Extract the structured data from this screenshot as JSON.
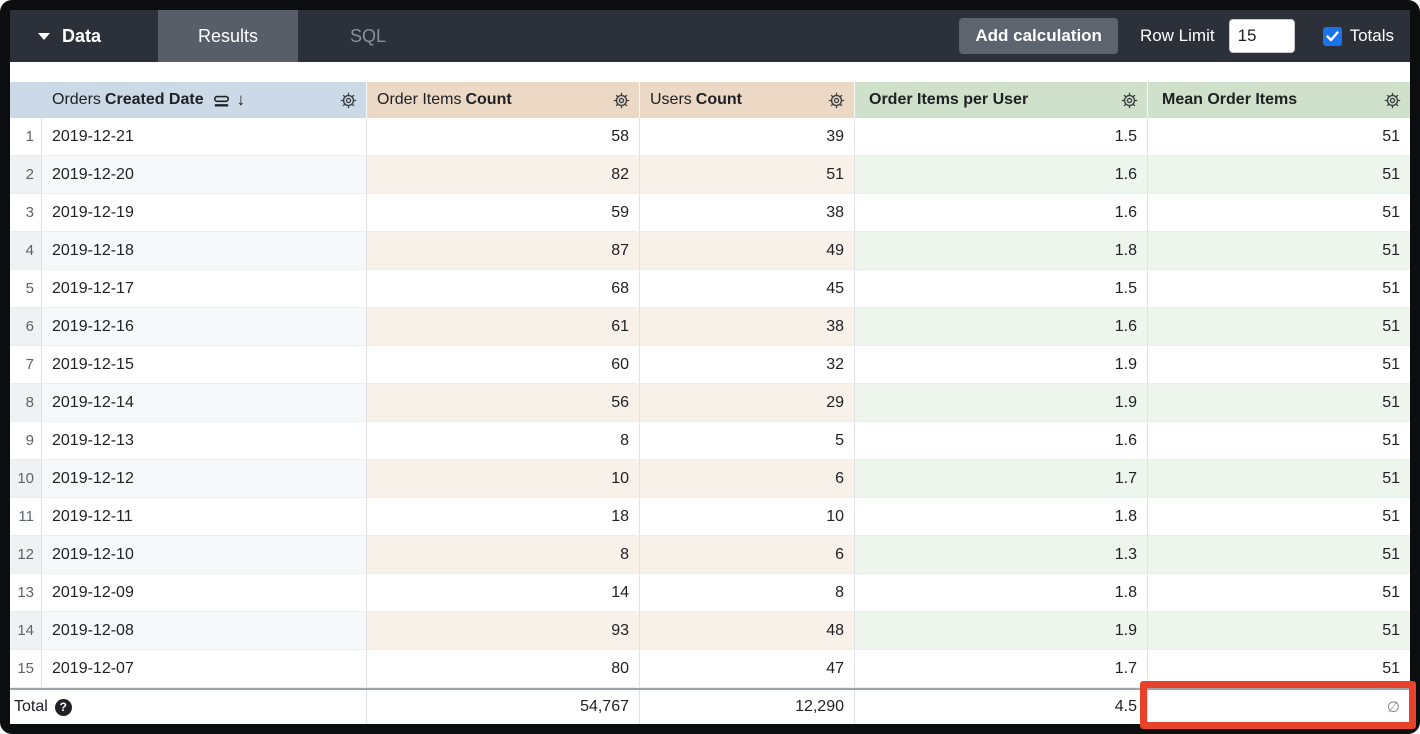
{
  "toolbar": {
    "data_menu_label": "Data",
    "tabs": [
      {
        "label": "Results",
        "active": true
      },
      {
        "label": "SQL",
        "active": false
      }
    ],
    "add_calculation_label": "Add calculation",
    "row_limit_label": "Row Limit",
    "row_limit_value": "15",
    "totals_label": "Totals",
    "totals_checked": true
  },
  "table": {
    "headers": [
      {
        "prefix": "Orders",
        "name": "Created Date",
        "group": "dimension",
        "sorted": "desc"
      },
      {
        "prefix": "Order Items",
        "name": "Count",
        "group": "measure"
      },
      {
        "prefix": "Users",
        "name": "Count",
        "group": "measure"
      },
      {
        "prefix": "",
        "name": "Order Items per User",
        "group": "table_calculation"
      },
      {
        "prefix": "",
        "name": "Mean Order Items",
        "group": "table_calculation"
      }
    ],
    "rows": [
      {
        "n": "1",
        "date": "2019-12-21",
        "order_items_count": "58",
        "users_count": "39",
        "order_items_per_user": "1.5",
        "mean_order_items": "51"
      },
      {
        "n": "2",
        "date": "2019-12-20",
        "order_items_count": "82",
        "users_count": "51",
        "order_items_per_user": "1.6",
        "mean_order_items": "51"
      },
      {
        "n": "3",
        "date": "2019-12-19",
        "order_items_count": "59",
        "users_count": "38",
        "order_items_per_user": "1.6",
        "mean_order_items": "51"
      },
      {
        "n": "4",
        "date": "2019-12-18",
        "order_items_count": "87",
        "users_count": "49",
        "order_items_per_user": "1.8",
        "mean_order_items": "51"
      },
      {
        "n": "5",
        "date": "2019-12-17",
        "order_items_count": "68",
        "users_count": "45",
        "order_items_per_user": "1.5",
        "mean_order_items": "51"
      },
      {
        "n": "6",
        "date": "2019-12-16",
        "order_items_count": "61",
        "users_count": "38",
        "order_items_per_user": "1.6",
        "mean_order_items": "51"
      },
      {
        "n": "7",
        "date": "2019-12-15",
        "order_items_count": "60",
        "users_count": "32",
        "order_items_per_user": "1.9",
        "mean_order_items": "51"
      },
      {
        "n": "8",
        "date": "2019-12-14",
        "order_items_count": "56",
        "users_count": "29",
        "order_items_per_user": "1.9",
        "mean_order_items": "51"
      },
      {
        "n": "9",
        "date": "2019-12-13",
        "order_items_count": "8",
        "users_count": "5",
        "order_items_per_user": "1.6",
        "mean_order_items": "51"
      },
      {
        "n": "10",
        "date": "2019-12-12",
        "order_items_count": "10",
        "users_count": "6",
        "order_items_per_user": "1.7",
        "mean_order_items": "51"
      },
      {
        "n": "11",
        "date": "2019-12-11",
        "order_items_count": "18",
        "users_count": "10",
        "order_items_per_user": "1.8",
        "mean_order_items": "51"
      },
      {
        "n": "12",
        "date": "2019-12-10",
        "order_items_count": "8",
        "users_count": "6",
        "order_items_per_user": "1.3",
        "mean_order_items": "51"
      },
      {
        "n": "13",
        "date": "2019-12-09",
        "order_items_count": "14",
        "users_count": "8",
        "order_items_per_user": "1.8",
        "mean_order_items": "51"
      },
      {
        "n": "14",
        "date": "2019-12-08",
        "order_items_count": "93",
        "users_count": "48",
        "order_items_per_user": "1.9",
        "mean_order_items": "51"
      },
      {
        "n": "15",
        "date": "2019-12-07",
        "order_items_count": "80",
        "users_count": "47",
        "order_items_per_user": "1.7",
        "mean_order_items": "51"
      }
    ],
    "total_row": {
      "label": "Total",
      "order_items_count": "54,767",
      "users_count": "12,290",
      "order_items_per_user": "4.5",
      "mean_order_items": "∅"
    }
  },
  "highlight": {
    "color": "#e8432a"
  },
  "colors": {
    "topbar_bg": "#2b3039",
    "active_tab_bg": "#575e67",
    "checkbox_blue": "#1a73e8",
    "dimension_header_bg": "#cbdae6",
    "measure_header_bg": "#ebd9c6",
    "calc_header_bg": "#cfe1ca",
    "highlight_red": "#e8432a"
  }
}
